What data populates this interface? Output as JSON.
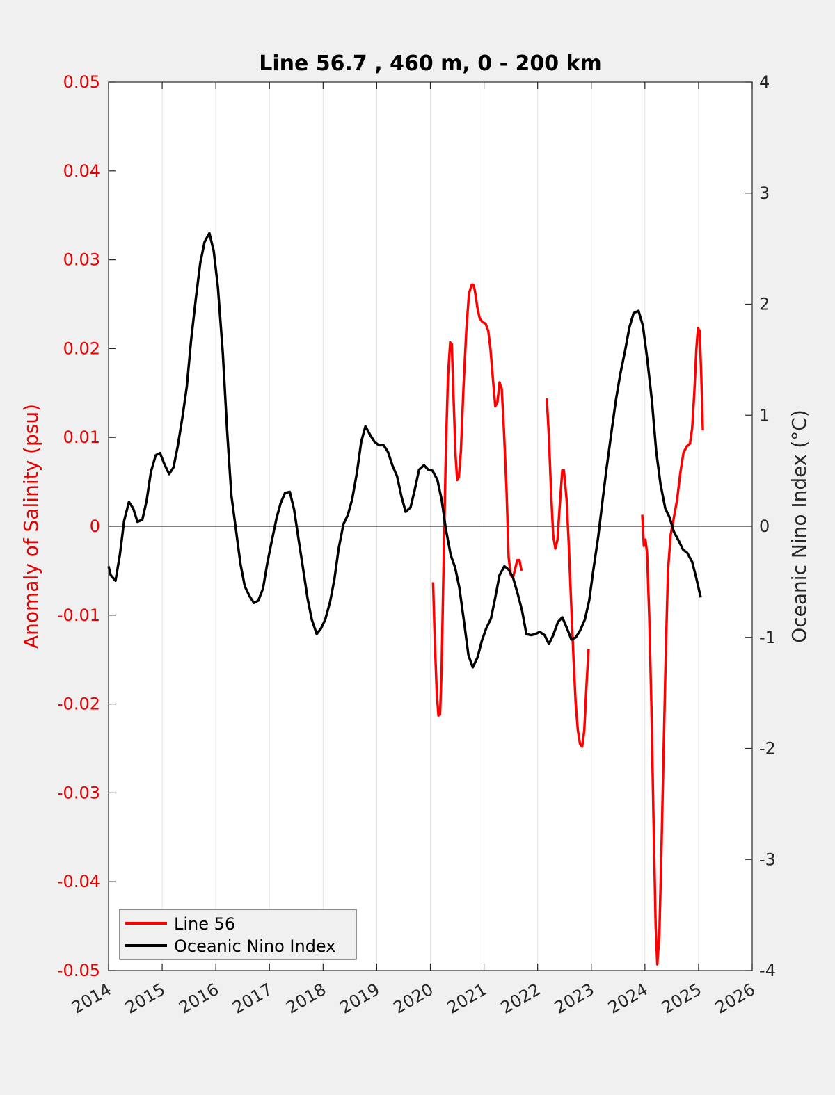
{
  "chart_data": {
    "type": "line",
    "title": "Line 56.7 , 460 m, 0 - 200 km",
    "xlabel": "",
    "ylabel_left": "Anomaly of Salinity (psu)",
    "ylabel_right": "Oceanic Nino Index (°C)",
    "xlim": [
      2014,
      2026
    ],
    "ylim_left": [
      -0.05,
      0.05
    ],
    "ylim_right": [
      -4,
      4
    ],
    "x_ticks": [
      "2014",
      "2015",
      "2016",
      "2017",
      "2018",
      "2019",
      "2020",
      "2021",
      "2022",
      "2023",
      "2024",
      "2025",
      "2026"
    ],
    "y_ticks_left": [
      "-0.05",
      "-0.04",
      "-0.03",
      "-0.02",
      "-0.01",
      "0",
      "0.01",
      "0.02",
      "0.03",
      "0.04",
      "0.05"
    ],
    "y_ticks_right": [
      "-4",
      "-3",
      "-2",
      "-1",
      "0",
      "1",
      "2",
      "3",
      "4"
    ],
    "grid": "vertical",
    "legend_position": "bottom-left",
    "series": [
      {
        "name": "Line 56",
        "axis": "left",
        "color": "#ff0000",
        "segments": [
          [
            [
              2020.05,
              -0.0063
            ],
            [
              2020.08,
              -0.0125
            ],
            [
              2020.12,
              -0.0188
            ],
            [
              2020.15,
              -0.0213
            ],
            [
              2020.18,
              -0.0212
            ],
            [
              2020.21,
              -0.016
            ],
            [
              2020.25,
              -0.003
            ],
            [
              2020.29,
              0.009
            ],
            [
              2020.33,
              0.017
            ],
            [
              2020.37,
              0.0207
            ],
            [
              2020.4,
              0.0205
            ],
            [
              2020.43,
              0.015
            ],
            [
              2020.47,
              0.008
            ],
            [
              2020.5,
              0.0052
            ],
            [
              2020.53,
              0.0055
            ],
            [
              2020.57,
              0.0085
            ],
            [
              2020.62,
              0.016
            ],
            [
              2020.67,
              0.022
            ],
            [
              2020.72,
              0.0262
            ],
            [
              2020.77,
              0.0272
            ],
            [
              2020.8,
              0.0272
            ],
            [
              2020.83,
              0.0265
            ],
            [
              2020.88,
              0.0245
            ],
            [
              2020.92,
              0.0234
            ],
            [
              2020.97,
              0.023
            ],
            [
              2021.03,
              0.0228
            ],
            [
              2021.08,
              0.022
            ],
            [
              2021.12,
              0.02
            ],
            [
              2021.17,
              0.0163
            ],
            [
              2021.21,
              0.0135
            ],
            [
              2021.25,
              0.014
            ],
            [
              2021.29,
              0.0162
            ],
            [
              2021.33,
              0.0155
            ],
            [
              2021.37,
              0.011
            ],
            [
              2021.42,
              0.004
            ],
            [
              2021.46,
              -0.0035
            ],
            [
              2021.5,
              -0.0055
            ],
            [
              2021.54,
              -0.0058
            ],
            [
              2021.58,
              -0.0048
            ],
            [
              2021.62,
              -0.0038
            ],
            [
              2021.66,
              -0.0038
            ],
            [
              2021.7,
              -0.005
            ]
          ],
          [
            [
              2022.17,
              0.0144
            ],
            [
              2022.21,
              0.01
            ],
            [
              2022.25,
              0.004
            ],
            [
              2022.29,
              -0.001
            ],
            [
              2022.33,
              -0.0025
            ],
            [
              2022.37,
              -0.0015
            ],
            [
              2022.42,
              0.003
            ],
            [
              2022.46,
              0.0063
            ],
            [
              2022.49,
              0.0063
            ],
            [
              2022.54,
              0.003
            ],
            [
              2022.58,
              -0.002
            ],
            [
              2022.62,
              -0.008
            ],
            [
              2022.67,
              -0.015
            ],
            [
              2022.71,
              -0.02
            ],
            [
              2022.75,
              -0.023
            ],
            [
              2022.79,
              -0.0245
            ],
            [
              2022.83,
              -0.0248
            ],
            [
              2022.87,
              -0.023
            ],
            [
              2022.91,
              -0.018
            ],
            [
              2022.95,
              -0.0138
            ]
          ],
          [
            [
              2023.95,
              0.0013
            ],
            [
              2023.98,
              -0.0022
            ],
            [
              2024.01,
              -0.0015
            ],
            [
              2024.04,
              -0.003
            ],
            [
              2024.08,
              -0.01
            ],
            [
              2024.12,
              -0.02
            ],
            [
              2024.16,
              -0.033
            ],
            [
              2024.2,
              -0.045
            ],
            [
              2024.23,
              -0.0493
            ],
            [
              2024.27,
              -0.046
            ],
            [
              2024.31,
              -0.036
            ],
            [
              2024.35,
              -0.025
            ],
            [
              2024.39,
              -0.014
            ],
            [
              2024.43,
              -0.005
            ],
            [
              2024.48,
              -0.001
            ],
            [
              2024.54,
              0.001
            ],
            [
              2024.6,
              0.003
            ],
            [
              2024.66,
              0.006
            ],
            [
              2024.72,
              0.0083
            ],
            [
              2024.78,
              0.009
            ],
            [
              2024.84,
              0.0093
            ],
            [
              2024.88,
              0.011
            ],
            [
              2024.92,
              0.015
            ],
            [
              2024.96,
              0.02
            ],
            [
              2024.99,
              0.0223
            ],
            [
              2025.02,
              0.022
            ],
            [
              2025.05,
              0.017
            ],
            [
              2025.08,
              0.0108
            ]
          ]
        ]
      },
      {
        "name": "Oceanic Nino Index",
        "axis": "right",
        "color": "#000000",
        "points": [
          [
            2014.0,
            -0.36
          ],
          [
            2014.04,
            -0.44
          ],
          [
            2014.13,
            -0.49
          ],
          [
            2014.21,
            -0.26
          ],
          [
            2014.29,
            0.05
          ],
          [
            2014.38,
            0.22
          ],
          [
            2014.46,
            0.16
          ],
          [
            2014.54,
            0.04
          ],
          [
            2014.63,
            0.06
          ],
          [
            2014.71,
            0.23
          ],
          [
            2014.79,
            0.49
          ],
          [
            2014.88,
            0.64
          ],
          [
            2014.96,
            0.66
          ],
          [
            2015.04,
            0.56
          ],
          [
            2015.13,
            0.47
          ],
          [
            2015.21,
            0.53
          ],
          [
            2015.29,
            0.72
          ],
          [
            2015.38,
            0.99
          ],
          [
            2015.46,
            1.26
          ],
          [
            2015.54,
            1.68
          ],
          [
            2015.63,
            2.06
          ],
          [
            2015.71,
            2.37
          ],
          [
            2015.79,
            2.56
          ],
          [
            2015.88,
            2.64
          ],
          [
            2015.96,
            2.48
          ],
          [
            2016.04,
            2.15
          ],
          [
            2016.13,
            1.56
          ],
          [
            2016.21,
            0.86
          ],
          [
            2016.29,
            0.28
          ],
          [
            2016.38,
            -0.05
          ],
          [
            2016.46,
            -0.34
          ],
          [
            2016.54,
            -0.54
          ],
          [
            2016.63,
            -0.63
          ],
          [
            2016.71,
            -0.69
          ],
          [
            2016.79,
            -0.67
          ],
          [
            2016.88,
            -0.56
          ],
          [
            2016.96,
            -0.33
          ],
          [
            2017.04,
            -0.14
          ],
          [
            2017.13,
            0.07
          ],
          [
            2017.21,
            0.21
          ],
          [
            2017.29,
            0.3
          ],
          [
            2017.38,
            0.31
          ],
          [
            2017.46,
            0.15
          ],
          [
            2017.54,
            -0.11
          ],
          [
            2017.63,
            -0.39
          ],
          [
            2017.71,
            -0.65
          ],
          [
            2017.79,
            -0.84
          ],
          [
            2017.88,
            -0.97
          ],
          [
            2017.96,
            -0.92
          ],
          [
            2018.04,
            -0.84
          ],
          [
            2018.13,
            -0.68
          ],
          [
            2018.21,
            -0.48
          ],
          [
            2018.29,
            -0.2
          ],
          [
            2018.38,
            0.02
          ],
          [
            2018.46,
            0.1
          ],
          [
            2018.54,
            0.24
          ],
          [
            2018.63,
            0.48
          ],
          [
            2018.71,
            0.76
          ],
          [
            2018.79,
            0.9
          ],
          [
            2018.88,
            0.82
          ],
          [
            2018.96,
            0.76
          ],
          [
            2019.04,
            0.73
          ],
          [
            2019.13,
            0.73
          ],
          [
            2019.21,
            0.67
          ],
          [
            2019.29,
            0.55
          ],
          [
            2019.38,
            0.45
          ],
          [
            2019.46,
            0.27
          ],
          [
            2019.54,
            0.13
          ],
          [
            2019.63,
            0.17
          ],
          [
            2019.71,
            0.33
          ],
          [
            2019.79,
            0.51
          ],
          [
            2019.88,
            0.55
          ],
          [
            2019.96,
            0.51
          ],
          [
            2020.04,
            0.5
          ],
          [
            2020.13,
            0.42
          ],
          [
            2020.21,
            0.24
          ],
          [
            2020.29,
            -0.03
          ],
          [
            2020.38,
            -0.26
          ],
          [
            2020.46,
            -0.37
          ],
          [
            2020.54,
            -0.55
          ],
          [
            2020.63,
            -0.87
          ],
          [
            2020.71,
            -1.16
          ],
          [
            2020.79,
            -1.27
          ],
          [
            2020.88,
            -1.18
          ],
          [
            2020.96,
            -1.03
          ],
          [
            2021.04,
            -0.92
          ],
          [
            2021.13,
            -0.83
          ],
          [
            2021.21,
            -0.64
          ],
          [
            2021.29,
            -0.44
          ],
          [
            2021.38,
            -0.36
          ],
          [
            2021.46,
            -0.39
          ],
          [
            2021.54,
            -0.46
          ],
          [
            2021.63,
            -0.61
          ],
          [
            2021.71,
            -0.76
          ],
          [
            2021.79,
            -0.97
          ],
          [
            2021.88,
            -0.98
          ],
          [
            2021.96,
            -0.97
          ],
          [
            2022.04,
            -0.95
          ],
          [
            2022.13,
            -0.98
          ],
          [
            2022.21,
            -1.06
          ],
          [
            2022.29,
            -0.98
          ],
          [
            2022.38,
            -0.86
          ],
          [
            2022.46,
            -0.82
          ],
          [
            2022.54,
            -0.91
          ],
          [
            2022.63,
            -1.02
          ],
          [
            2022.71,
            -1.0
          ],
          [
            2022.79,
            -0.94
          ],
          [
            2022.88,
            -0.84
          ],
          [
            2022.96,
            -0.67
          ],
          [
            2023.04,
            -0.39
          ],
          [
            2023.13,
            -0.09
          ],
          [
            2023.21,
            0.23
          ],
          [
            2023.29,
            0.54
          ],
          [
            2023.38,
            0.86
          ],
          [
            2023.46,
            1.14
          ],
          [
            2023.54,
            1.37
          ],
          [
            2023.63,
            1.58
          ],
          [
            2023.71,
            1.79
          ],
          [
            2023.79,
            1.92
          ],
          [
            2023.88,
            1.94
          ],
          [
            2023.96,
            1.81
          ],
          [
            2024.04,
            1.52
          ],
          [
            2024.13,
            1.13
          ],
          [
            2024.21,
            0.68
          ],
          [
            2024.29,
            0.38
          ],
          [
            2024.38,
            0.16
          ],
          [
            2024.46,
            0.08
          ],
          [
            2024.54,
            -0.05
          ],
          [
            2024.63,
            -0.13
          ],
          [
            2024.71,
            -0.21
          ],
          [
            2024.79,
            -0.24
          ],
          [
            2024.88,
            -0.32
          ],
          [
            2024.96,
            -0.47
          ],
          [
            2025.04,
            -0.64
          ]
        ]
      }
    ]
  }
}
